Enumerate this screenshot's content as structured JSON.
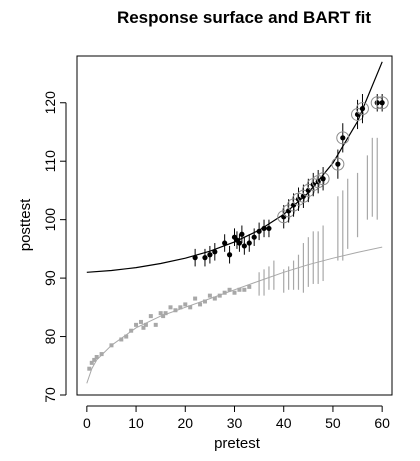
{
  "chart_data": {
    "type": "scatter",
    "title": "Response surface and BART fit",
    "xlabel": "pretest",
    "ylabel": "posttest",
    "xlim": [
      -2,
      62
    ],
    "ylim": [
      70,
      128
    ],
    "x_ticks": [
      0,
      10,
      20,
      30,
      40,
      50,
      60
    ],
    "y_ticks": [
      70,
      80,
      90,
      100,
      110,
      120
    ],
    "grid": false,
    "colors": {
      "treated": "#000000",
      "control": "#a8a8a8",
      "frame": "#000000"
    },
    "surface_treated": {
      "x": [
        0,
        5,
        10,
        15,
        20,
        25,
        30,
        35,
        40,
        45,
        50,
        55,
        60
      ],
      "y": [
        91.0,
        91.3,
        91.8,
        92.5,
        93.4,
        94.6,
        96.2,
        98.2,
        100.9,
        104.6,
        109.7,
        116.8,
        127.0
      ]
    },
    "surface_control": {
      "x": [
        0,
        1,
        2,
        5,
        10,
        15,
        20,
        25,
        30,
        35,
        40,
        45,
        50,
        55,
        60
      ],
      "y": [
        72.0,
        74.5,
        76.0,
        78.5,
        81.5,
        83.5,
        85.0,
        86.5,
        88.0,
        89.5,
        91.0,
        92.3,
        93.4,
        94.4,
        95.3
      ]
    },
    "treated_points": {
      "x": [
        22,
        24,
        25,
        26,
        28,
        29,
        30,
        30.5,
        31,
        31.5,
        32,
        33,
        34,
        35,
        36,
        37,
        40,
        41,
        42,
        43,
        44,
        45,
        46,
        47,
        48,
        51,
        52,
        55,
        56,
        59,
        60
      ],
      "y": [
        93.5,
        93.5,
        94.0,
        94.5,
        96.0,
        94.0,
        97.0,
        96.5,
        96.0,
        97.5,
        95.5,
        96.0,
        97.0,
        98.0,
        98.5,
        98.5,
        100.5,
        101.5,
        102.5,
        103.5,
        104.0,
        105.0,
        106.0,
        106.5,
        107.0,
        109.5,
        114.0,
        118.0,
        119.0,
        120.0,
        120.0
      ],
      "err": [
        1.5,
        1.5,
        1.5,
        1.5,
        1.5,
        1.5,
        1.5,
        1.5,
        1.5,
        1.5,
        1.5,
        1.5,
        1.5,
        1.5,
        1.5,
        1.5,
        2.0,
        2.0,
        2.0,
        2.0,
        2.0,
        2.0,
        2.0,
        2.0,
        2.0,
        2.5,
        2.5,
        2.5,
        2.5,
        1.5,
        1.5
      ],
      "circled": [
        false,
        false,
        false,
        false,
        false,
        false,
        false,
        false,
        false,
        false,
        false,
        false,
        false,
        false,
        false,
        false,
        true,
        true,
        true,
        true,
        true,
        true,
        true,
        true,
        true,
        true,
        true,
        true,
        true,
        true,
        true
      ]
    },
    "control_points": {
      "x": [
        0.5,
        1.0,
        1.5,
        2.0,
        3.0,
        5.0,
        7.0,
        8.0,
        9.0,
        10.0,
        11.0,
        11.5,
        12.0,
        13.0,
        14.0,
        15.0,
        15.5,
        16.0,
        17.0,
        18.0,
        19.0,
        20.0,
        21.0,
        22.0,
        23.0,
        24.0,
        25.0,
        26.0,
        27.0,
        28.0,
        29.0,
        30.0,
        31.0,
        32.0,
        33.0
      ],
      "y": [
        74.5,
        75.5,
        76.0,
        76.5,
        77.0,
        78.5,
        79.5,
        80.0,
        81.0,
        82.0,
        82.5,
        81.5,
        82.0,
        83.5,
        82.0,
        84.0,
        83.5,
        84.0,
        85.0,
        84.5,
        85.0,
        85.5,
        85.0,
        86.5,
        85.5,
        86.0,
        87.0,
        86.5,
        87.0,
        87.5,
        88.0,
        87.5,
        88.0,
        88.0,
        88.5
      ]
    },
    "control_intervals": {
      "x": [
        35,
        36,
        37,
        38,
        40,
        41,
        42,
        43,
        44,
        45,
        46,
        47,
        48,
        51,
        52,
        53,
        55,
        57,
        58,
        59
      ],
      "low": [
        87.0,
        87.0,
        88.0,
        88.0,
        87.5,
        88.0,
        88.0,
        88.0,
        87.5,
        88.5,
        89.0,
        89.0,
        89.5,
        93.0,
        93.0,
        95.0,
        97.0,
        100.0,
        100.5,
        100.0
      ],
      "high": [
        91.0,
        91.5,
        92.0,
        93.0,
        91.5,
        92.0,
        93.0,
        94.0,
        96.0,
        97.0,
        98.0,
        98.0,
        99.0,
        104.0,
        105.0,
        107.0,
        108.0,
        111.0,
        114.0,
        114.0
      ]
    }
  }
}
